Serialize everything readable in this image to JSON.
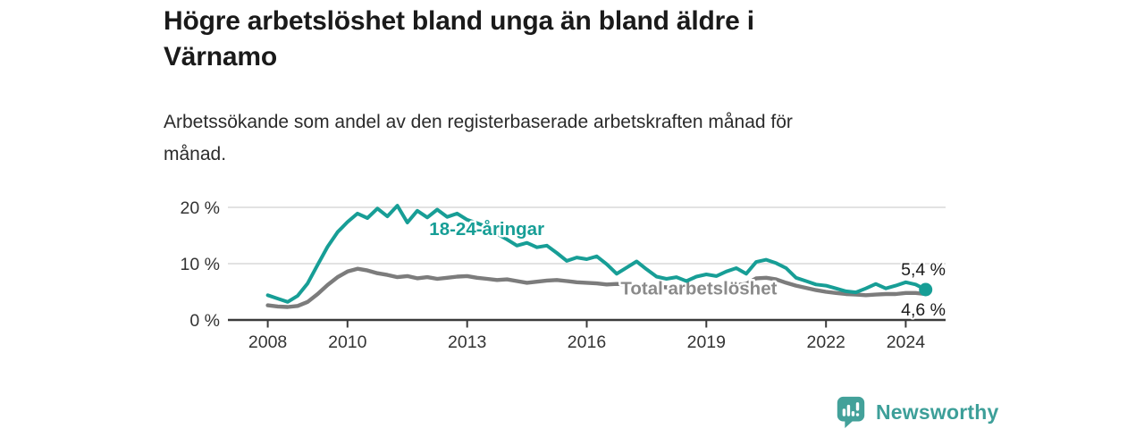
{
  "header": {
    "title": "Högre arbetslöshet bland unga än bland äldre i Värnamo",
    "title_lines": [
      "Högre arbetslöshet bland unga än bland äldre i",
      "Värnamo"
    ],
    "subtitle": "Arbetssökande som andel av den registerbaserade arbetskraften månad för månad.",
    "subtitle_lines": [
      "Arbetssökande som andel av den registerbaserade arbetskraften månad för",
      "månad."
    ]
  },
  "branding": {
    "logo_text": "Newsworthy",
    "logo_icon": "newsworthy-speech-bubble-bar-chart-icon",
    "logo_color": "#3d9f99"
  },
  "chart_data": {
    "type": "line",
    "title": "Högre arbetslöshet bland unga än bland äldre i Värnamo",
    "xlabel": "",
    "ylabel": "Arbetssökande som andel av den registerbaserade arbetskraften",
    "x_domain": [
      2007,
      2025
    ],
    "y_domain": [
      0,
      20
    ],
    "grid": "horizontal-only",
    "legend_position": "inline-labels",
    "colors": {
      "gridline": "#d9d9d9",
      "axis": "#3b3b3b",
      "tick_label": "#333333",
      "end_label": "#1a1a1a"
    },
    "y_ticks": [
      {
        "value": 0,
        "label": "0 %"
      },
      {
        "value": 10,
        "label": "10 %"
      },
      {
        "value": 20,
        "label": "20 %"
      }
    ],
    "x_ticks": [
      {
        "value": 2008,
        "label": "2008"
      },
      {
        "value": 2010,
        "label": "2010"
      },
      {
        "value": 2013,
        "label": "2013"
      },
      {
        "value": 2016,
        "label": "2016"
      },
      {
        "value": 2019,
        "label": "2019"
      },
      {
        "value": 2022,
        "label": "2022"
      },
      {
        "value": 2024,
        "label": "2024"
      }
    ],
    "series": [
      {
        "name": "18-24-åringar",
        "color": "#179e96",
        "label_color": "#179e96",
        "label_pos": {
          "x": 2012.05,
          "y": 16.2
        },
        "end_label": "5,4 %",
        "end_value": 5.4,
        "end_dot": true,
        "x_start": 2008.0,
        "x_step": 0.25,
        "values": [
          4.4,
          3.8,
          3.2,
          4.3,
          6.5,
          9.8,
          13.0,
          15.6,
          17.4,
          18.9,
          18.1,
          19.8,
          18.4,
          20.3,
          17.3,
          19.4,
          18.2,
          19.6,
          18.3,
          18.9,
          17.8,
          17.2,
          16.5,
          15.3,
          14.3,
          13.2,
          13.7,
          12.9,
          13.2,
          11.9,
          10.5,
          11.1,
          10.8,
          11.3,
          9.9,
          8.2,
          9.3,
          10.4,
          9.0,
          7.7,
          7.3,
          7.6,
          6.9,
          7.7,
          8.1,
          7.8,
          8.6,
          9.2,
          8.2,
          10.3,
          10.7,
          10.1,
          9.2,
          7.5,
          6.9,
          6.3,
          6.1,
          5.6,
          5.1,
          4.9,
          5.6,
          6.4,
          5.6,
          6.1,
          6.7,
          6.3,
          5.4
        ]
      },
      {
        "name": "Total arbetslöshet",
        "color": "#7c7c7c",
        "label_color": "#8a8a8a",
        "label_pos": {
          "x": 2016.85,
          "y": 5.6
        },
        "end_label": "4,6 %",
        "end_value": 4.6,
        "end_dot": false,
        "x_start": 2008.0,
        "x_step": 0.25,
        "values": [
          2.6,
          2.4,
          2.3,
          2.5,
          3.2,
          4.6,
          6.2,
          7.6,
          8.6,
          9.1,
          8.8,
          8.3,
          8.0,
          7.6,
          7.8,
          7.4,
          7.6,
          7.3,
          7.5,
          7.7,
          7.8,
          7.5,
          7.3,
          7.1,
          7.2,
          6.9,
          6.6,
          6.8,
          7.0,
          7.1,
          6.9,
          6.7,
          6.6,
          6.5,
          6.3,
          6.4,
          6.3,
          6.2,
          6.0,
          5.9,
          5.8,
          5.7,
          5.6,
          5.7,
          5.8,
          6.0,
          6.1,
          6.2,
          6.4,
          7.4,
          7.5,
          7.2,
          6.6,
          6.1,
          5.7,
          5.3,
          5.0,
          4.8,
          4.6,
          4.5,
          4.4,
          4.5,
          4.6,
          4.6,
          4.8,
          4.8,
          4.6
        ]
      }
    ]
  }
}
